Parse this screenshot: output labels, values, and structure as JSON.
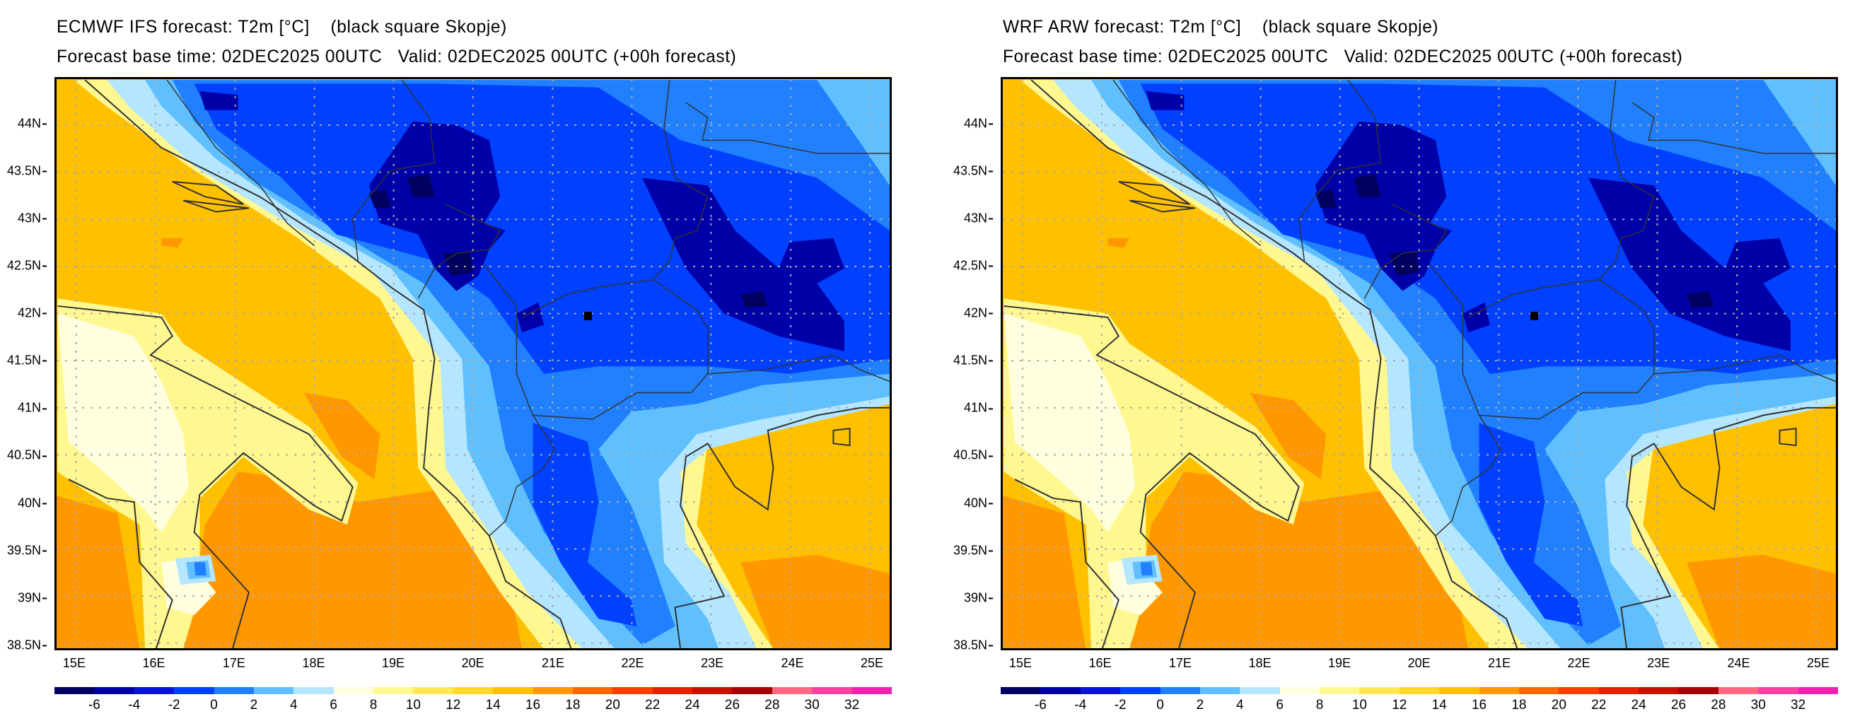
{
  "panels": [
    {
      "title": "ECMWF IFS forecast: T2m [°C]    (black square Skopje)",
      "subtitle": "Forecast base time: 02DEC2025 00UTC   Valid: 02DEC2025 00UTC (+00h forecast)"
    },
    {
      "title": "WRF ARW forecast: T2m [°C]    (black square Skopje)",
      "subtitle": "Forecast base time: 02DEC2025 00UTC   Valid: 02DEC2025 00UTC (+00h forecast)"
    }
  ],
  "lat_labels": [
    "44N",
    "43.5N",
    "43N",
    "42.5N",
    "42N",
    "41.5N",
    "41N",
    "40.5N",
    "40N",
    "39.5N",
    "39N",
    "38.5N"
  ],
  "lon_labels": [
    "15E",
    "16E",
    "17E",
    "18E",
    "19E",
    "20E",
    "21E",
    "22E",
    "23E",
    "24E",
    "25E"
  ],
  "colorbar": {
    "labels": [
      "-6",
      "-4",
      "-2",
      "0",
      "2",
      "4",
      "6",
      "8",
      "10",
      "12",
      "14",
      "16",
      "18",
      "20",
      "22",
      "24",
      "26",
      "28",
      "30",
      "32"
    ],
    "colors": [
      "#00005e",
      "#0000a8",
      "#0a14d8",
      "#0040ff",
      "#2080ff",
      "#60c0ff",
      "#b4e6ff",
      "#ffffe0",
      "#fff890",
      "#ffe850",
      "#ffd828",
      "#ffc000",
      "#ff9800",
      "#ff6600",
      "#ff3c00",
      "#e82000",
      "#c81000",
      "#a80000",
      "#ff6880",
      "#ff40a0",
      "#f020b0"
    ]
  },
  "marker_color": "#000000"
}
